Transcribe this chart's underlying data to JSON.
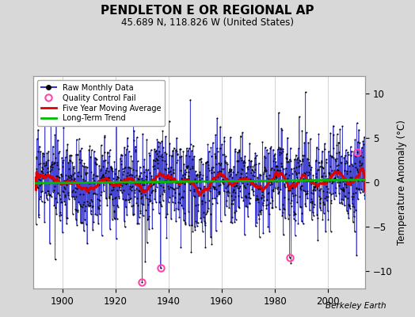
{
  "title": "PENDLETON E OR REGIONAL AP",
  "subtitle": "45.689 N, 118.826 W (United States)",
  "ylabel": "Temperature Anomaly (°C)",
  "credit": "Berkeley Earth",
  "year_start": 1890,
  "year_end": 2014,
  "ylim": [
    -12,
    12
  ],
  "yticks": [
    -10,
    -5,
    0,
    5,
    10
  ],
  "xticks": [
    1900,
    1920,
    1940,
    1960,
    1980,
    2000
  ],
  "bg_color": "#d8d8d8",
  "plot_bg_color": "#ffffff",
  "raw_line_color": "#3333cc",
  "raw_dot_color": "#000000",
  "moving_avg_color": "#dd0000",
  "trend_color": "#00bb00",
  "qc_fail_color": "#ff44aa",
  "legend_labels": [
    "Raw Monthly Data",
    "Quality Control Fail",
    "Five Year Moving Average",
    "Long-Term Trend"
  ],
  "qc_fail_points": [
    {
      "year": 1930.0,
      "value": -11.3
    },
    {
      "year": 1937.0,
      "value": -9.7
    },
    {
      "year": 1985.5,
      "value": -8.5
    },
    {
      "year": 2011.0,
      "value": 3.4
    }
  ],
  "seed": 17,
  "n_std": 2.5,
  "ma_amp1": 0.7,
  "ma_amp2": 0.5,
  "ma_period1": 11,
  "ma_period2": 22
}
